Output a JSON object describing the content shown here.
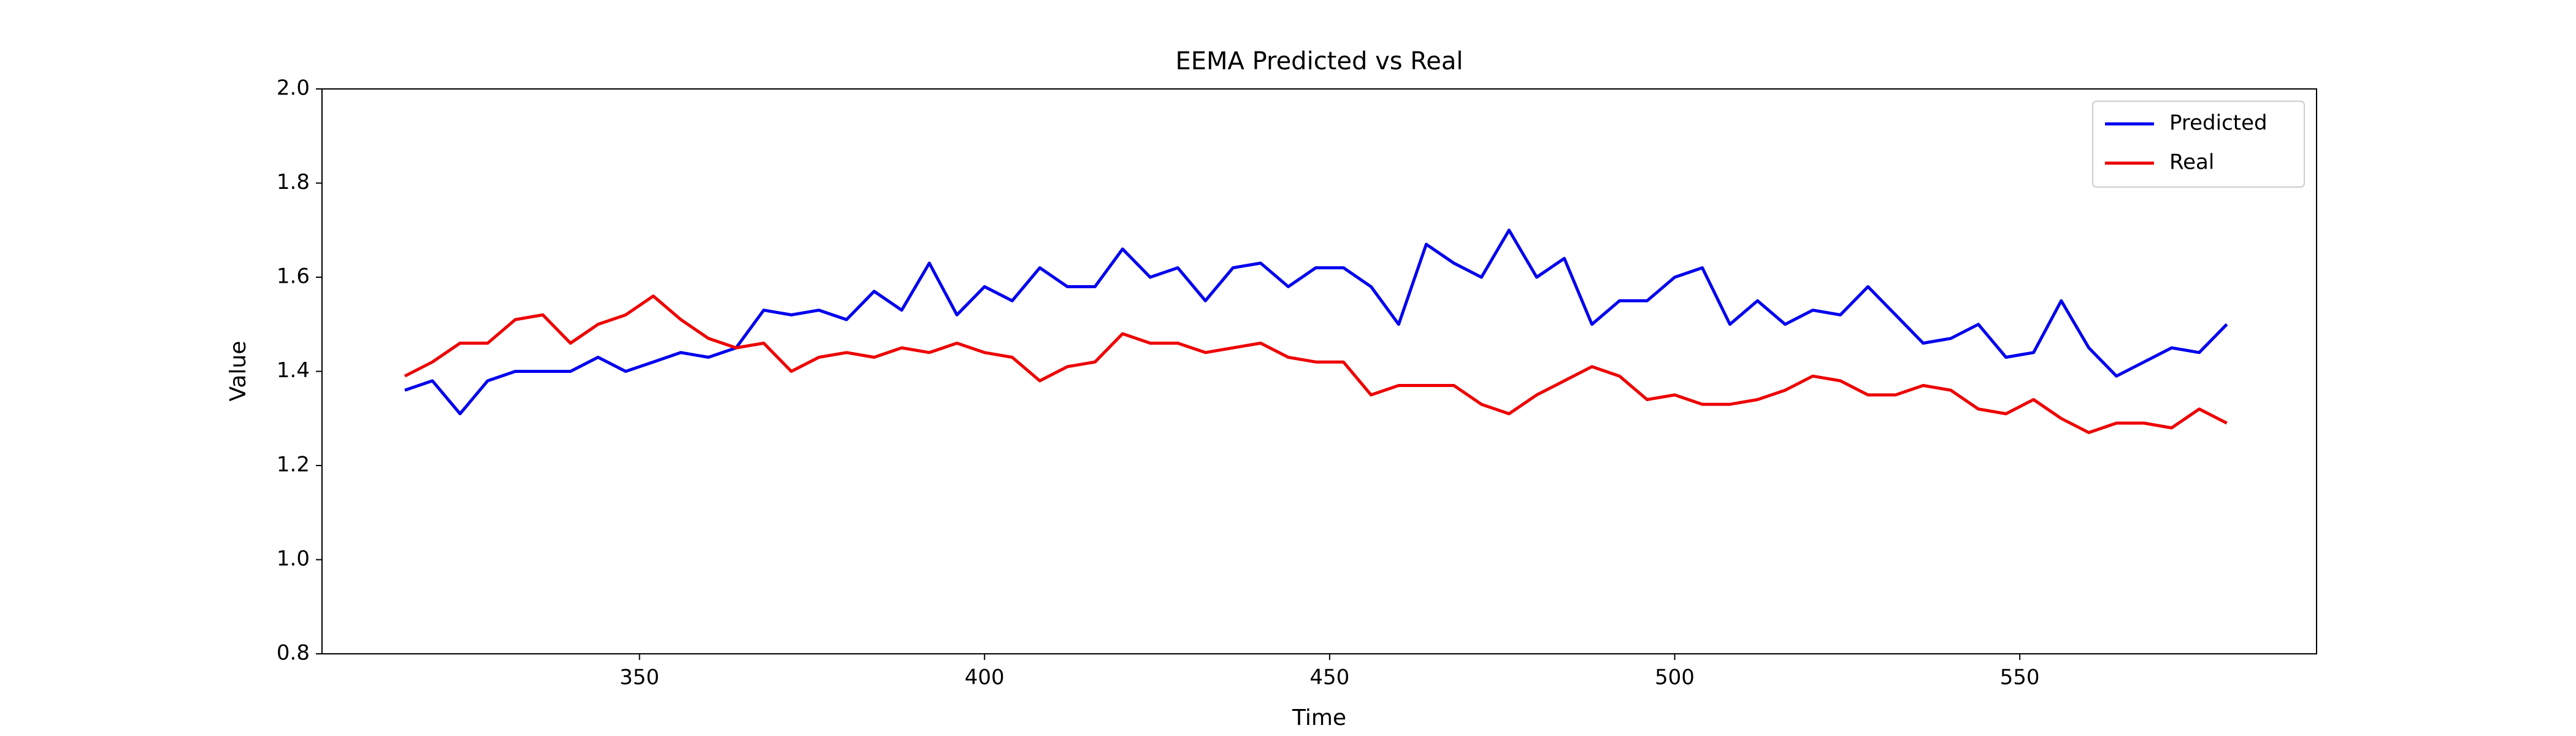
{
  "chart_data": {
    "type": "line",
    "title": "EEMA Predicted vs Real",
    "xlabel": "Time",
    "ylabel": "Value",
    "x": [
      316,
      320,
      324,
      328,
      332,
      336,
      340,
      344,
      348,
      352,
      356,
      360,
      364,
      368,
      372,
      376,
      380,
      384,
      388,
      392,
      396,
      400,
      404,
      408,
      412,
      416,
      420,
      424,
      428,
      432,
      436,
      440,
      444,
      448,
      452,
      456,
      460,
      464,
      468,
      472,
      476,
      480,
      484,
      488,
      492,
      496,
      500,
      504,
      508,
      512,
      516,
      520,
      524,
      528,
      532,
      536,
      540,
      544,
      548,
      552,
      556,
      560,
      564,
      568,
      572,
      576,
      580
    ],
    "series": [
      {
        "name": "Predicted",
        "color": "#0000ee",
        "values": [
          1.36,
          1.38,
          1.31,
          1.38,
          1.4,
          1.4,
          1.4,
          1.43,
          1.4,
          1.42,
          1.44,
          1.43,
          1.45,
          1.53,
          1.52,
          1.53,
          1.51,
          1.57,
          1.53,
          1.63,
          1.52,
          1.58,
          1.55,
          1.62,
          1.58,
          1.58,
          1.66,
          1.6,
          1.62,
          1.55,
          1.62,
          1.63,
          1.58,
          1.62,
          1.62,
          1.58,
          1.5,
          1.67,
          1.63,
          1.6,
          1.7,
          1.6,
          1.64,
          1.5,
          1.55,
          1.55,
          1.6,
          1.62,
          1.5,
          1.55,
          1.5,
          1.53,
          1.52,
          1.58,
          1.52,
          1.46,
          1.47,
          1.5,
          1.43,
          1.44,
          1.55,
          1.45,
          1.39,
          1.42,
          1.45,
          1.44,
          1.5
        ]
      },
      {
        "name": "Real",
        "color": "#ee0000",
        "values": [
          1.39,
          1.42,
          1.46,
          1.46,
          1.51,
          1.52,
          1.46,
          1.5,
          1.52,
          1.56,
          1.51,
          1.47,
          1.45,
          1.46,
          1.4,
          1.43,
          1.44,
          1.43,
          1.45,
          1.44,
          1.46,
          1.44,
          1.43,
          1.38,
          1.41,
          1.42,
          1.48,
          1.46,
          1.46,
          1.44,
          1.45,
          1.46,
          1.43,
          1.42,
          1.42,
          1.35,
          1.37,
          1.37,
          1.37,
          1.33,
          1.31,
          1.35,
          1.38,
          1.41,
          1.39,
          1.34,
          1.35,
          1.33,
          1.33,
          1.34,
          1.36,
          1.39,
          1.38,
          1.35,
          1.35,
          1.37,
          1.36,
          1.32,
          1.31,
          1.34,
          1.3,
          1.27,
          1.29,
          1.29,
          1.28,
          1.32,
          1.29
        ]
      }
    ],
    "xlim": [
      304,
      593
    ],
    "xticks": [
      350,
      400,
      450,
      500,
      550
    ],
    "ylim": [
      0.8,
      2.0
    ],
    "yticks": [
      0.8,
      {
        "value": 1,
        "label": "1.0"
      },
      1.2,
      1.4,
      1.6,
      1.8,
      {
        "value": 2,
        "label": "2.0"
      }
    ],
    "legend": "upper right"
  }
}
